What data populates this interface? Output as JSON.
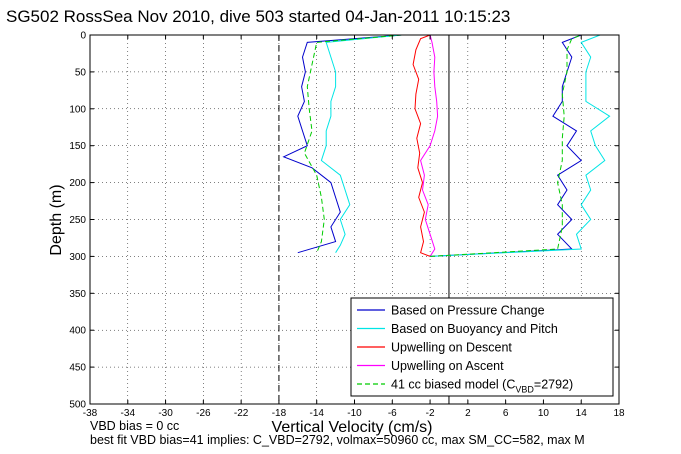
{
  "chart_data": {
    "type": "line",
    "title": "SG502 RossSea Nov 2010, dive 503 started 04-Jan-2011 10:15:23",
    "xlabel": "Vertical Velocity (cm/s)",
    "ylabel": "Depth (m)",
    "xlim": [
      -38,
      18
    ],
    "ylim": [
      500,
      0
    ],
    "y_reversed": true,
    "grid": true,
    "legend_position": "bottom-right",
    "xticks": [
      "-38",
      "-34",
      "-30",
      "-26",
      "-22",
      "-18",
      "-14",
      "-10",
      "-6",
      "-2",
      "2",
      "6",
      "10",
      "14",
      "18"
    ],
    "yticks": [
      "0",
      "50",
      "100",
      "150",
      "200",
      "250",
      "300",
      "350",
      "400",
      "450",
      "500"
    ],
    "vertical_reference_lines": [
      {
        "x": -18,
        "style": "dashed"
      },
      {
        "x": 0,
        "style": "solid"
      },
      {
        "x": 18,
        "style": "dashed"
      }
    ],
    "series": [
      {
        "name": "Based on Pressure Change",
        "color": "#0000cc",
        "style": "solid",
        "descent": {
          "depth": [
            0,
            10,
            30,
            50,
            70,
            90,
            110,
            130,
            150,
            165,
            180,
            200,
            220,
            240,
            260,
            280,
            295
          ],
          "velocity": [
            -5,
            -15,
            -15.5,
            -15.2,
            -15.6,
            -15.3,
            -16,
            -15.5,
            -15,
            -17.5,
            -14.5,
            -12.5,
            -12,
            -11.5,
            -12.5,
            -12,
            -16
          ]
        },
        "ascent": {
          "depth": [
            300,
            290,
            270,
            250,
            230,
            210,
            190,
            170,
            150,
            130,
            110,
            90,
            70,
            50,
            30,
            10,
            0
          ],
          "velocity": [
            -2,
            13,
            11.5,
            13,
            11.5,
            12.5,
            11.5,
            14,
            12.5,
            13.5,
            11,
            12,
            12,
            12.5,
            13,
            12,
            14
          ]
        }
      },
      {
        "name": "Based on Buoyancy and Pitch",
        "color": "#00e5e5",
        "style": "solid",
        "descent": {
          "depth": [
            0,
            10,
            30,
            50,
            70,
            90,
            110,
            130,
            150,
            170,
            190,
            210,
            230,
            250,
            270,
            285,
            295
          ],
          "velocity": [
            -5,
            -13,
            -12.5,
            -12,
            -12,
            -12.5,
            -12.5,
            -13,
            -13,
            -13.5,
            -11.5,
            -11,
            -10.5,
            -11.5,
            -11,
            -11.5,
            -12
          ]
        },
        "ascent": {
          "depth": [
            300,
            290,
            270,
            250,
            230,
            210,
            190,
            170,
            150,
            130,
            110,
            90,
            70,
            50,
            30,
            10,
            0
          ],
          "velocity": [
            -2,
            14,
            13.5,
            15,
            14,
            15,
            14.5,
            16.5,
            15.5,
            15,
            17,
            14.5,
            14.5,
            14.5,
            15,
            14,
            16
          ]
        }
      },
      {
        "name": "Upwelling on Descent",
        "color": "#ff0000",
        "style": "solid",
        "descent": {
          "depth": [
            0,
            5,
            20,
            40,
            60,
            80,
            100,
            120,
            140,
            160,
            180,
            200,
            220,
            240,
            260,
            280,
            295,
            300
          ],
          "velocity": [
            -2,
            -3,
            -3.5,
            -3.8,
            -3.2,
            -3.5,
            -3.6,
            -3,
            -3.4,
            -3.1,
            -3.3,
            -2.8,
            -3.2,
            -2.6,
            -3,
            -2.7,
            -3,
            -2
          ]
        }
      },
      {
        "name": "Upwelling on Ascent",
        "color": "#ff00ff",
        "style": "solid",
        "ascent": {
          "depth": [
            300,
            290,
            270,
            250,
            230,
            210,
            190,
            170,
            150,
            130,
            110,
            90,
            70,
            50,
            30,
            10,
            0
          ],
          "velocity": [
            -2,
            -1.5,
            -2,
            -2.5,
            -2.2,
            -2.8,
            -2.6,
            -3,
            -2,
            -1.5,
            -1.2,
            -1.3,
            -1.5,
            -1.6,
            -1.5,
            -1.8,
            -2
          ]
        }
      },
      {
        "name": "41 cc biased model (C_VBD=2792)",
        "label_parts": {
          "before_sub": "41 cc biased model (C",
          "sub": "VBD",
          "after_sub": "=2792)"
        },
        "color": "#00cc00",
        "style": "dashed",
        "descent": {
          "depth": [
            0,
            10,
            40,
            70,
            100,
            130,
            160,
            190,
            220,
            250,
            280,
            295
          ],
          "velocity": [
            -5,
            -14,
            -14.5,
            -15,
            -14.8,
            -14.5,
            -15.3,
            -14,
            -13.5,
            -13.2,
            -13.5,
            -14
          ]
        },
        "ascent": {
          "depth": [
            300,
            290,
            260,
            230,
            200,
            170,
            140,
            110,
            80,
            50,
            20,
            5,
            0
          ],
          "velocity": [
            -2,
            11.5,
            12,
            12,
            11.5,
            12,
            12,
            12.2,
            12,
            12.5,
            12.5,
            13,
            14
          ]
        }
      }
    ]
  },
  "footer": {
    "line1": "VBD bias = 0 cc",
    "line2": "best fit VBD bias=41 implies: C_VBD=2792, volmax=50960 cc, max SM_CC=582, max M"
  }
}
